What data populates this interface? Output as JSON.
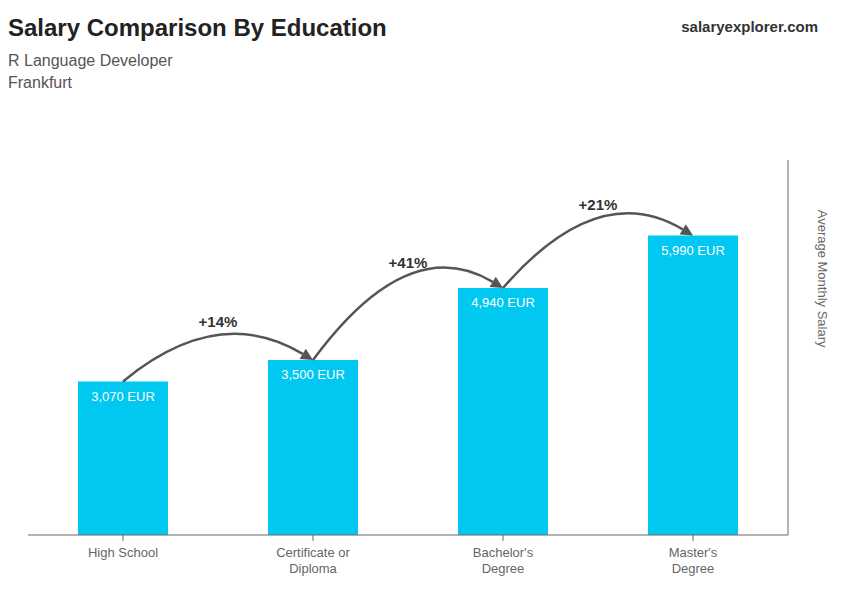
{
  "chart_data": {
    "type": "bar",
    "title": "Salary Comparison By Education",
    "subtitle": [
      "R Language Developer",
      "Frankfurt"
    ],
    "annotations": [
      "salary",
      "explorer.com"
    ],
    "ylabel": "Average Monthly Salary",
    "categories": [
      "High School",
      "Certificate or\nDiploma",
      "Bachelor's\nDegree",
      "Master's\nDegree"
    ],
    "values": [
      3070,
      3500,
      4940,
      5990
    ],
    "value_labels": [
      "3,070 EUR",
      "3,500 EUR",
      "4,940 EUR",
      "5,990 EUR"
    ],
    "change_labels": [
      "+14%",
      "+41%",
      "+21%"
    ],
    "color": "#00c8f0",
    "ylim": [
      0,
      7500
    ],
    "grid": false,
    "data_labels": true,
    "tick_labels": "x"
  }
}
